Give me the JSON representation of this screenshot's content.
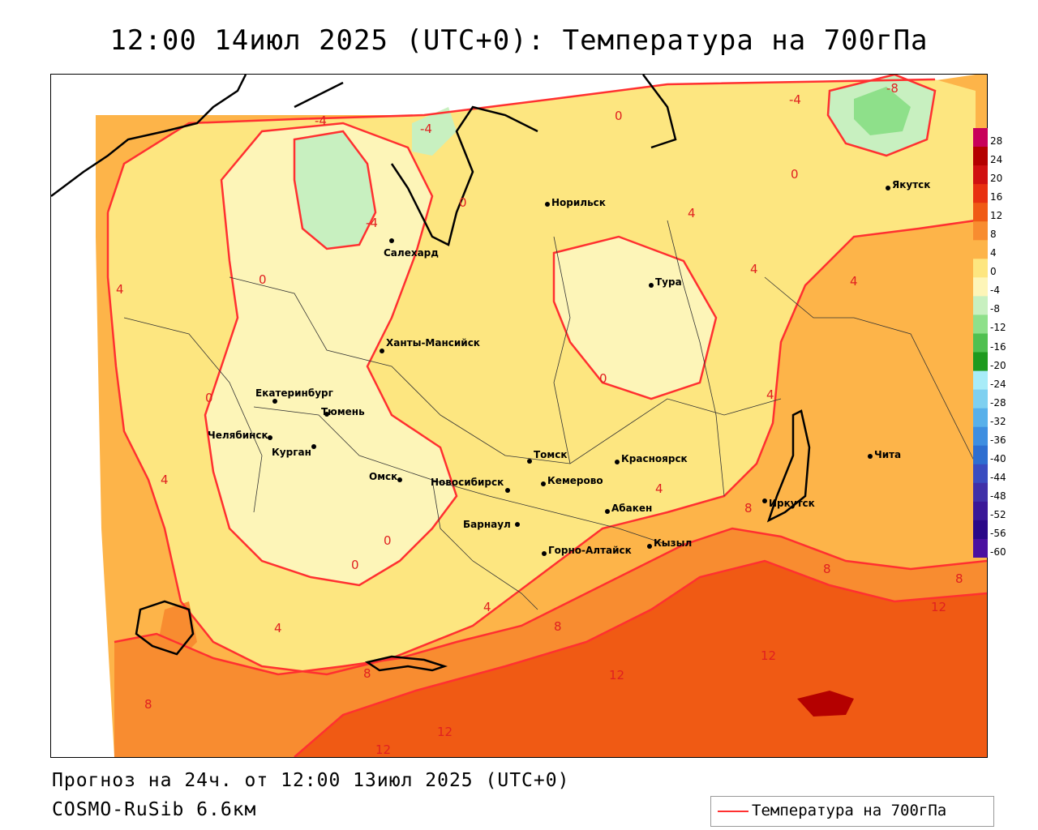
{
  "title": "12:00 14июл 2025 (UTC+0): Температура на 700гПа",
  "footer": {
    "forecast": "Прогноз на 24ч. от 12:00 13июл 2025 (UTC+0)",
    "model": "COSMO-RuSib 6.6км"
  },
  "legend": {
    "label": "Температура на 700гПа",
    "line_color": "#ff3030"
  },
  "colorbar": {
    "ticks": [
      "28",
      "24",
      "20",
      "16",
      "12",
      "8",
      "4",
      "0",
      "-4",
      "-8",
      "-12",
      "-16",
      "-20",
      "-24",
      "-28",
      "-32",
      "-36",
      "-40",
      "-44",
      "-48",
      "-52",
      "-56",
      "-60"
    ],
    "colors": [
      "#c8005a",
      "#b40000",
      "#d01010",
      "#e83010",
      "#f05a14",
      "#f88c30",
      "#fdb449",
      "#fde680",
      "#fdf5b8",
      "#c8f0c0",
      "#8ee08a",
      "#50c050",
      "#1e9a1e",
      "#a8ecf8",
      "#7fd0f0",
      "#58b0ea",
      "#3e8ee0",
      "#2e6ed0",
      "#3a4cc0",
      "#4030a8",
      "#3a1898",
      "#2a0888",
      "#4a10a0"
    ]
  },
  "cities": [
    {
      "name": "Норильск"
    },
    {
      "name": "Якутск"
    },
    {
      "name": "Салехард"
    },
    {
      "name": "Тура"
    },
    {
      "name": "Ханты-Мансийск"
    },
    {
      "name": "Екатеринбург"
    },
    {
      "name": "Тюмень"
    },
    {
      "name": "Челябинск"
    },
    {
      "name": "Курган"
    },
    {
      "name": "Омск"
    },
    {
      "name": "Новосибирск"
    },
    {
      "name": "Томск"
    },
    {
      "name": "Кемерово"
    },
    {
      "name": "Красноярск"
    },
    {
      "name": "Абакен"
    },
    {
      "name": "Барнаул"
    },
    {
      "name": "Горно-Алтайск"
    },
    {
      "name": "Кызыл"
    },
    {
      "name": "Иркутск"
    },
    {
      "name": "Чита"
    }
  ],
  "contour_labels": [
    "-8",
    "-4",
    "-4",
    "-4",
    "-4",
    "0",
    "0",
    "0",
    "0",
    "0",
    "0",
    "0",
    "0",
    "4",
    "4",
    "4",
    "4",
    "4",
    "4",
    "4",
    "4",
    "4",
    "8",
    "8",
    "8",
    "8",
    "8",
    "8",
    "12",
    "12",
    "12",
    "12",
    "12"
  ]
}
